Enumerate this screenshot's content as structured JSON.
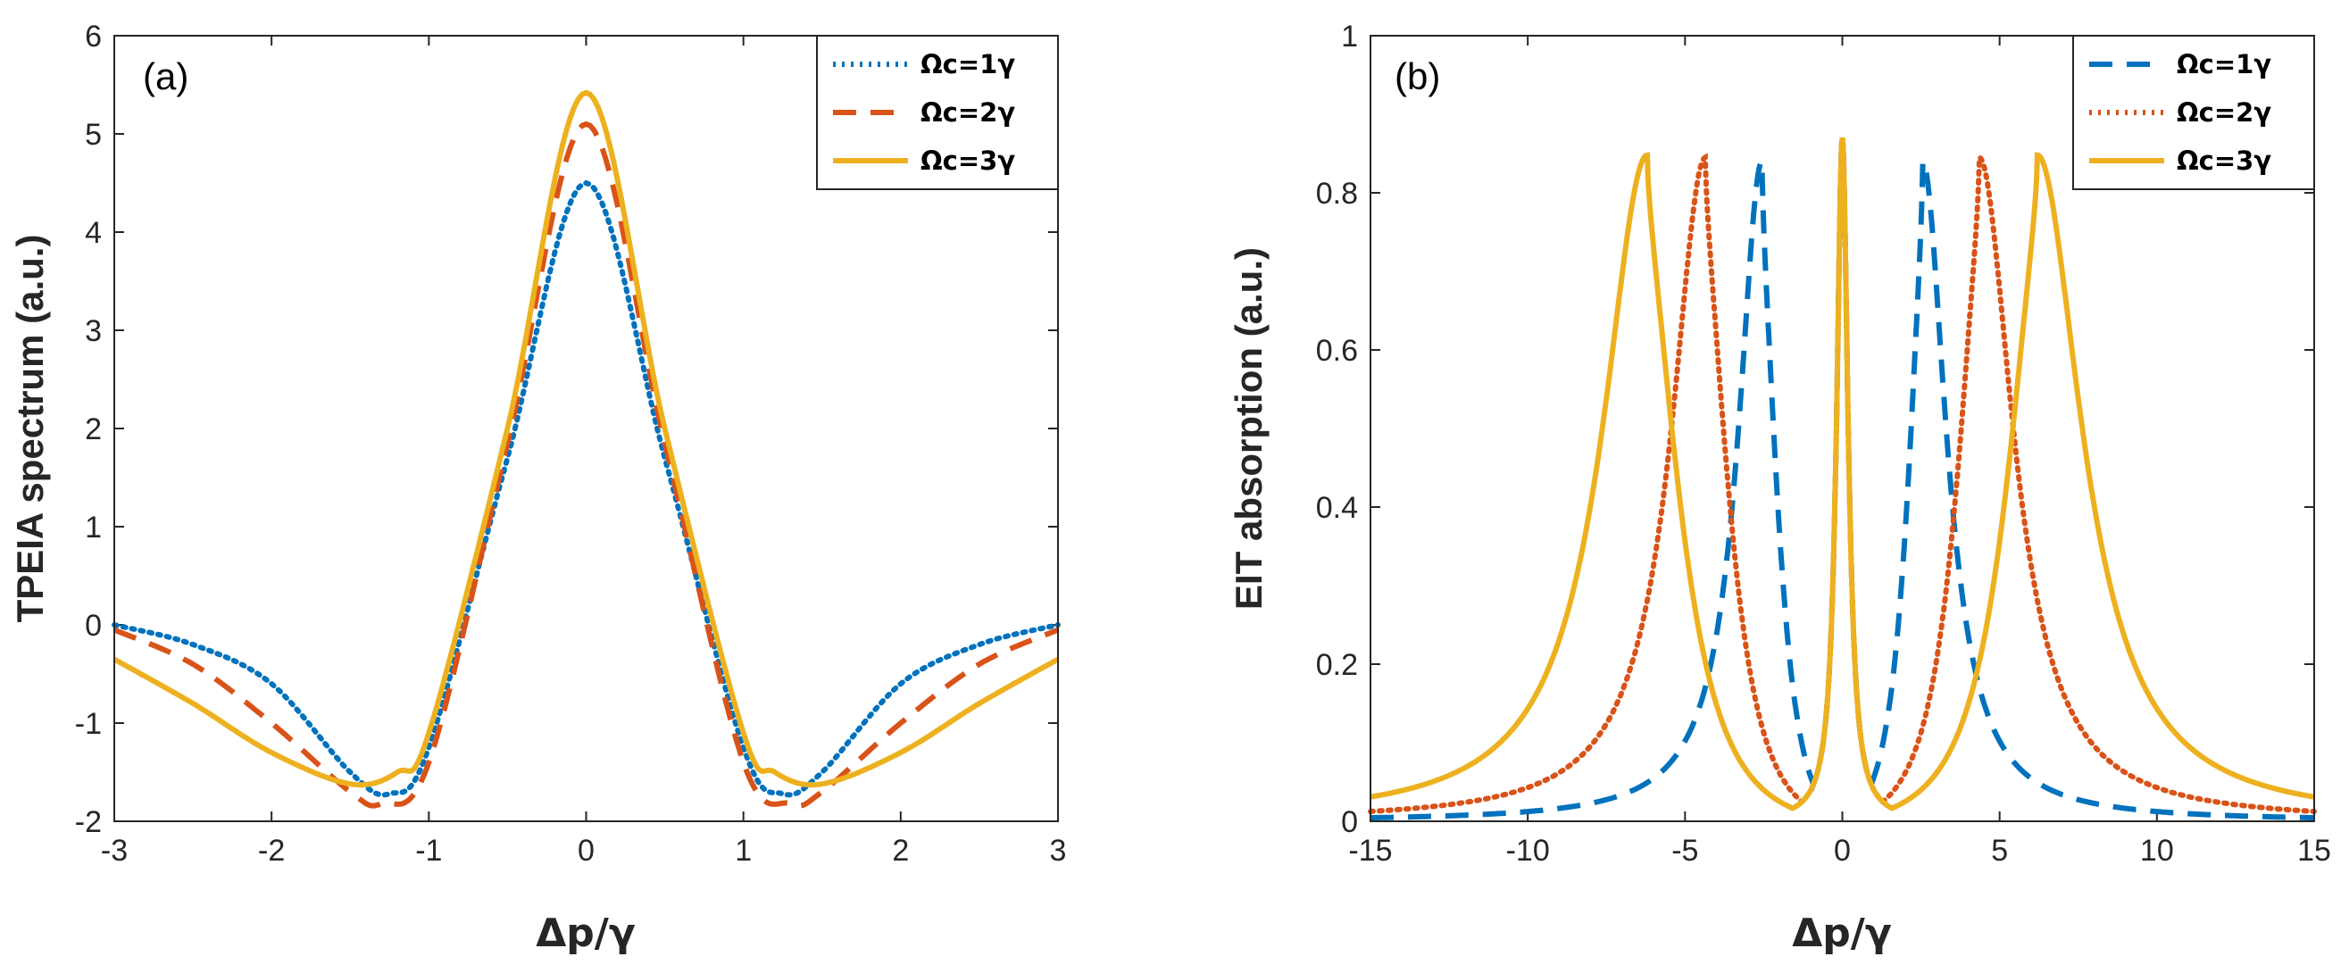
{
  "chart_data": [
    {
      "type": "line",
      "panel_label": "(a)",
      "ylabel": "TPEIA spectrum (a.u.)",
      "xlabel": "Δp/γ",
      "xlim": [
        -3,
        3
      ],
      "ylim": [
        -2,
        6
      ],
      "xticks": [
        "-3",
        "-2",
        "-1",
        "0",
        "1",
        "2",
        "3"
      ],
      "yticks": [
        "-2",
        "-1",
        "0",
        "1",
        "2",
        "3",
        "4",
        "5",
        "6"
      ],
      "grid": false,
      "legend_position": "top-right",
      "series": [
        {
          "name": "Ωc=1γ",
          "color": "#0072BD",
          "style": "dotted",
          "x": [
            -3,
            -2.5,
            -2,
            -1.5,
            -1.25,
            -1,
            -0.5,
            0,
            0.5,
            1,
            1.25,
            1.5,
            2,
            2.5,
            3
          ],
          "y": [
            0,
            -0.2,
            -0.6,
            -1.5,
            -1.72,
            -1.25,
            1.7,
            4.5,
            1.7,
            -1.25,
            -1.72,
            -1.5,
            -0.6,
            -0.2,
            0
          ]
        },
        {
          "name": "Ωc=2γ",
          "color": "#D95319",
          "style": "dashed",
          "x": [
            -3,
            -2.5,
            -2,
            -1.5,
            -1.3,
            -1,
            -0.5,
            0,
            0.5,
            1,
            1.3,
            1.5,
            2,
            2.5,
            3
          ],
          "y": [
            -0.05,
            -0.4,
            -1.0,
            -1.7,
            -1.82,
            -1.4,
            1.85,
            5.1,
            1.85,
            -1.4,
            -1.82,
            -1.7,
            -1.0,
            -0.4,
            -0.05
          ]
        },
        {
          "name": "Ωc=3γ",
          "color": "#EDB120",
          "style": "solid",
          "x": [
            -3,
            -2.5,
            -2,
            -1.5,
            -1.2,
            -1,
            -0.5,
            0,
            0.5,
            1,
            1.2,
            1.5,
            2,
            2.5,
            3
          ],
          "y": [
            -0.35,
            -0.8,
            -1.3,
            -1.62,
            -1.5,
            -1.1,
            2.0,
            5.42,
            2.0,
            -1.1,
            -1.5,
            -1.62,
            -1.3,
            -0.8,
            -0.35
          ]
        }
      ]
    },
    {
      "type": "line",
      "panel_label": "(b)",
      "ylabel": "EIT absorption (a.u.)",
      "xlabel": "Δp/γ",
      "xlim": [
        -15,
        15
      ],
      "ylim": [
        0,
        1
      ],
      "xticks": [
        "-15",
        "-10",
        "-5",
        "0",
        "5",
        "10",
        "15"
      ],
      "yticks": [
        "0",
        "0.2",
        "0.4",
        "0.6",
        "0.8",
        "1"
      ],
      "grid": false,
      "legend_position": "top-right",
      "series": [
        {
          "name": "Ωc=1γ",
          "color": "#0072BD",
          "style": "dashed",
          "side_peak": 2.55,
          "center_peak": 0.87,
          "side_height": 0.84,
          "dip": 0.05,
          "base": 0.035
        },
        {
          "name": "Ωc=2γ",
          "color": "#D95319",
          "style": "dotted",
          "side_peak": 4.35,
          "center_peak": 0.87,
          "side_height": 0.845,
          "dip": 0.01,
          "base": 0.04
        },
        {
          "name": "Ωc=3γ",
          "color": "#EDB120",
          "style": "solid",
          "side_peak": 6.2,
          "center_peak": 0.87,
          "side_height": 0.848,
          "dip": 0.0,
          "base": 0.045
        }
      ]
    }
  ]
}
